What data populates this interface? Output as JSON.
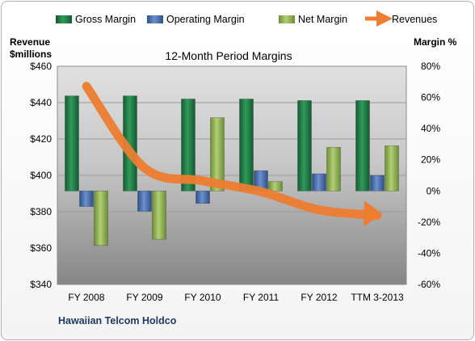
{
  "chart_data": {
    "type": "bar",
    "title": "12-Month Period Margins",
    "company_label": "Hawaiian Telcom Holdco",
    "left_axis": {
      "label_line1": "Revenue",
      "label_line2": "$millions",
      "range": [
        340,
        460
      ],
      "ticks": [
        "$340",
        "$360",
        "$380",
        "$400",
        "$420",
        "$440",
        "$460"
      ],
      "tick_values": [
        340,
        360,
        380,
        400,
        420,
        440,
        460
      ]
    },
    "right_axis": {
      "label": "Margin %",
      "range": [
        -60,
        80
      ],
      "ticks": [
        "-60%",
        "-40%",
        "-20%",
        "0%",
        "20%",
        "40%",
        "60%",
        "80%"
      ],
      "tick_values": [
        -60,
        -40,
        -20,
        0,
        20,
        40,
        60,
        80
      ]
    },
    "categories": [
      "FY 2008",
      "FY 2009",
      "FY 2010",
      "FY 2011",
      "FY 2012",
      "TTM 3-2013"
    ],
    "series": [
      {
        "name": "Gross Margin",
        "axis": "right",
        "color": "#1f7a45",
        "values": [
          61,
          61,
          59,
          59,
          58,
          58
        ]
      },
      {
        "name": "Operating Margin",
        "axis": "right",
        "color": "#4a6fae",
        "values": [
          -10,
          -13,
          -8,
          13,
          11,
          10
        ]
      },
      {
        "name": "Net Margin",
        "axis": "right",
        "color": "#8fb04e",
        "values": [
          -35,
          -31,
          47,
          6,
          28,
          29
        ]
      },
      {
        "name": "Revenues",
        "axis": "left",
        "type": "line",
        "color": "#ed7d31",
        "values": [
          449,
          404,
          397,
          391,
          381,
          378
        ]
      }
    ],
    "grid": true,
    "legend_position": "top"
  }
}
